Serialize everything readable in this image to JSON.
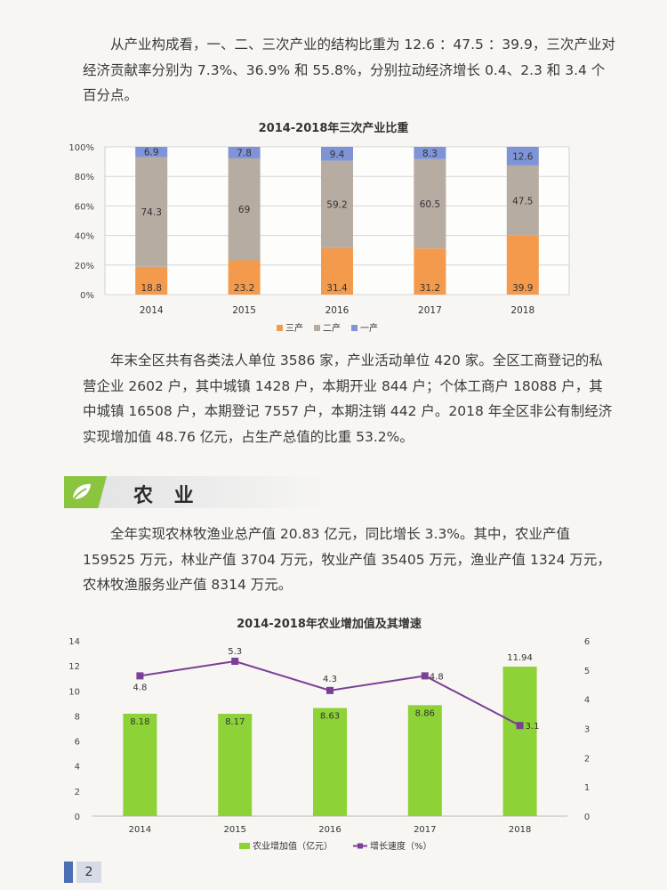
{
  "paragraphs": {
    "p1": "从产业构成看，一、二、三次产业的结构比重为 12.6 ：47.5 ：39.9，三次产业对经济贡献率分别为 7.3%、36.9% 和 55.8%，分别拉动经济增长 0.4、2.3 和 3.4 个百分点。",
    "p2": "年末全区共有各类法人单位 3586 家，产业活动单位 420 家。全区工商登记的私营企业 2602 户，其中城镇 1428 户，本期开业 844 户；个体工商户 18088 户，其中城镇 16508 户，本期登记 7557 户，本期注销 442 户。2018 年全区非公有制经济实现增加值 48.76 亿元，占生产总值的比重 53.2%。",
    "p3": "全年实现农林牧渔业总产值 20.83 亿元，同比增长 3.3%。其中，农业产值 159525 万元，林业产值 3704 万元，牧业产值 35405 万元，渔业产值 1324 万元，农林牧渔服务业产值 8314 万元。"
  },
  "section": {
    "title": "农 业",
    "icon": "leaf-icon"
  },
  "page": {
    "number": "2"
  },
  "colors": {
    "tertiary": "#f39a4c",
    "secondary": "#b7aca2",
    "primary": "#7f94d8",
    "agri_bar": "#8dd236",
    "growth_line": "#7b3f96",
    "section_green": "#8bc53f"
  },
  "chart_data": [
    {
      "type": "bar",
      "stacked": true,
      "title": "2014-2018年三次产业比重",
      "categories": [
        "2014",
        "2015",
        "2016",
        "2017",
        "2018"
      ],
      "series": [
        {
          "name": "三产",
          "values": [
            18.8,
            23.2,
            31.4,
            31.2,
            39.9
          ]
        },
        {
          "name": "二产",
          "values": [
            74.3,
            69,
            59.2,
            60.5,
            47.5
          ]
        },
        {
          "name": "一产",
          "values": [
            6.9,
            7.8,
            9.4,
            8.3,
            12.6
          ]
        }
      ],
      "yticks": [
        "0%",
        "20%",
        "40%",
        "60%",
        "80%",
        "100%"
      ],
      "ylim": [
        0,
        100
      ],
      "grid": true,
      "legend": "bottom"
    },
    {
      "type": "bar",
      "title": "2014-2018年农业增加值及其增速",
      "categories": [
        "2014",
        "2015",
        "2016",
        "2017",
        "2018"
      ],
      "series": [
        {
          "name": "农业增加值（亿元）",
          "type": "bar",
          "axis": "left",
          "values": [
            8.18,
            8.17,
            8.63,
            8.86,
            11.94
          ]
        },
        {
          "name": "增长速度（%）",
          "type": "line",
          "axis": "right",
          "values": [
            4.8,
            5.3,
            4.3,
            4.8,
            3.1
          ]
        }
      ],
      "yticks_left": [
        "0",
        "2",
        "4",
        "6",
        "8",
        "10",
        "12",
        "14"
      ],
      "ylim_left": [
        0,
        14
      ],
      "yticks_right": [
        "0",
        "1",
        "2",
        "3",
        "4",
        "5",
        "6"
      ],
      "ylim_right": [
        0,
        6
      ],
      "grid": false,
      "legend": "bottom"
    }
  ]
}
